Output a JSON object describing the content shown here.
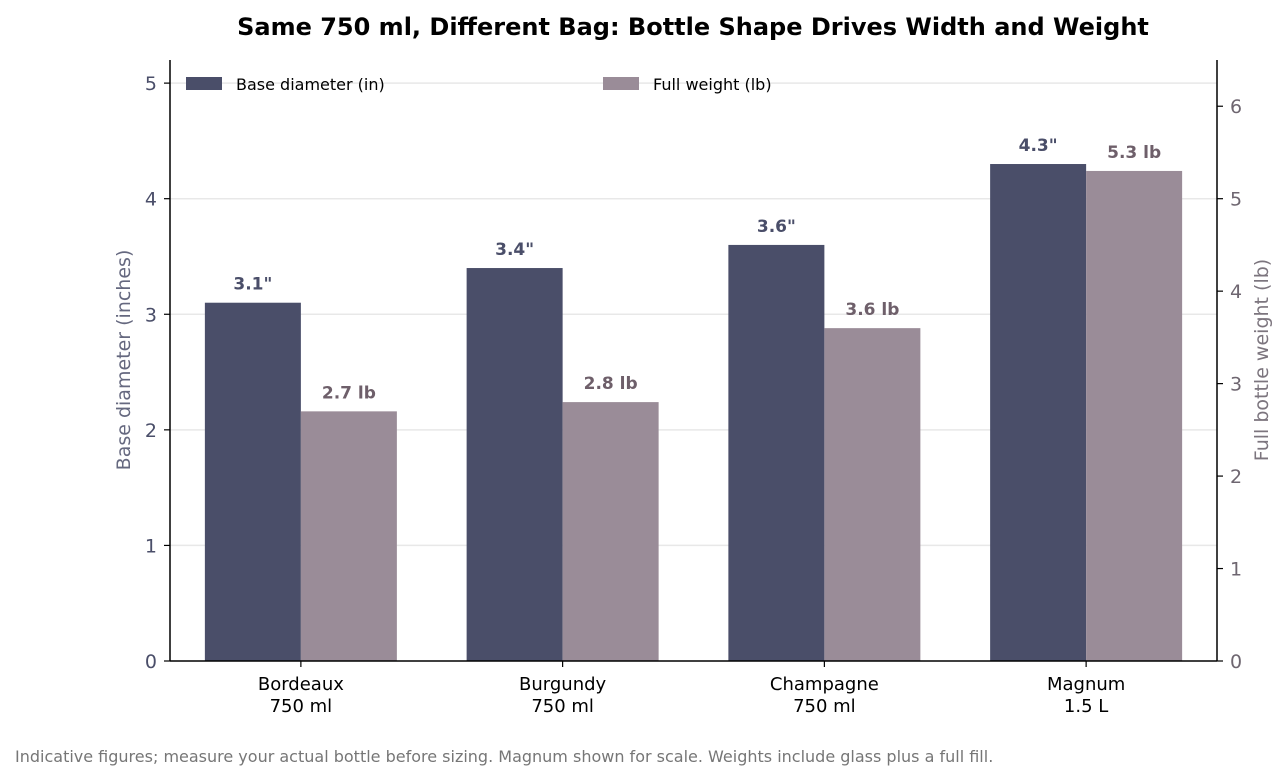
{
  "colors": {
    "diameter": "#4a4e69",
    "weight": "#9a8c98",
    "weight_text": "#6e5f6a",
    "left_axis_text": "#4a4e69",
    "right_axis_text": "#6e6670",
    "grid": "#e8e8e8"
  },
  "chart_data": {
    "type": "bar",
    "title": "Same 750 ml, Different Bag: Bottle Shape Drives Width and Weight",
    "categories": [
      [
        "Bordeaux",
        "750 ml"
      ],
      [
        "Burgundy",
        "750 ml"
      ],
      [
        "Champagne",
        "750 ml"
      ],
      [
        "Magnum",
        "1.5 L"
      ]
    ],
    "series": [
      {
        "name": "Base diameter (in)",
        "axis": "left",
        "values": [
          3.1,
          3.4,
          3.6,
          4.3
        ],
        "labels": [
          "3.1\"",
          "3.4\"",
          "3.6\"",
          "4.3\""
        ]
      },
      {
        "name": "Full weight (lb)",
        "axis": "right",
        "values": [
          2.7,
          2.8,
          3.6,
          5.3
        ],
        "labels": [
          "2.7 lb",
          "2.8 lb",
          "3.6 lb",
          "5.3 lb"
        ]
      }
    ],
    "ylabel": "Base diameter (inches)",
    "y2label": "Full bottle weight (lb)",
    "ylim": [
      0,
      5.2
    ],
    "y2lim": [
      0,
      6.5
    ],
    "yticks": [
      0,
      1,
      2,
      3,
      4,
      5
    ],
    "y2ticks": [
      0,
      1,
      2,
      3,
      4,
      5,
      6
    ],
    "grid": true,
    "legend": "top"
  },
  "footnote": "Indicative figures; measure your actual bottle before sizing. Magnum shown for scale. Weights include glass plus a full fill."
}
